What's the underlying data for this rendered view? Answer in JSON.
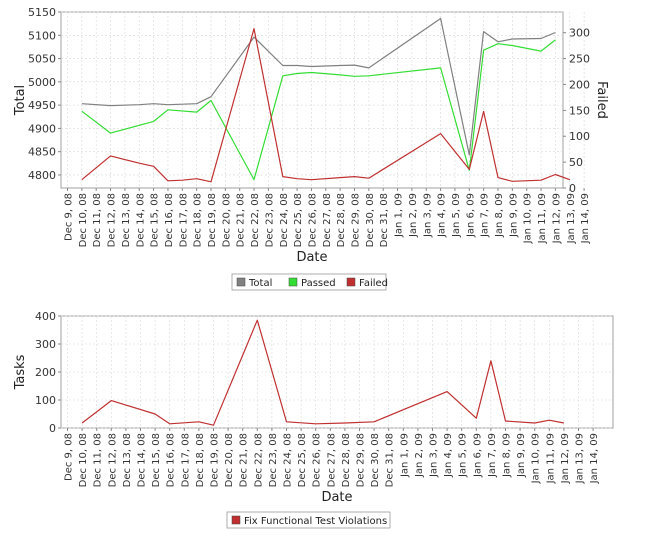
{
  "chart_data": [
    {
      "type": "line",
      "xlabel": "Date",
      "ylabel": "Total",
      "y2label": "Failed",
      "categories": [
        "Dec 9, 08",
        "Dec 10, 08",
        "Dec 11, 08",
        "Dec 12, 08",
        "Dec 13, 08",
        "Dec 14, 08",
        "Dec 15, 08",
        "Dec 16, 08",
        "Dec 17, 08",
        "Dec 18, 08",
        "Dec 19, 08",
        "Dec 20, 08",
        "Dec 21, 08",
        "Dec 22, 08",
        "Dec 23, 08",
        "Dec 24, 08",
        "Dec 25, 08",
        "Dec 26, 08",
        "Dec 27, 08",
        "Dec 28, 08",
        "Dec 29, 08",
        "Dec 30, 08",
        "Dec 31, 08",
        "Jan 1, 09",
        "Jan 2, 09",
        "Jan 3, 09",
        "Jan 4, 09",
        "Jan 5, 09",
        "Jan 6, 09",
        "Jan 7, 09",
        "Jan 8, 09",
        "Jan 9, 09",
        "Jan 10, 09",
        "Jan 11, 09",
        "Jan 12, 09",
        "Jan 13, 09",
        "Jan 14, 09"
      ],
      "ylim": [
        4772,
        5150
      ],
      "yticks": [
        4800,
        4850,
        4900,
        4950,
        5000,
        5050,
        5100,
        5150
      ],
      "y2lim": [
        0,
        340
      ],
      "y2ticks": [
        0,
        50,
        100,
        150,
        200,
        250,
        300
      ],
      "grid": true,
      "legend": "bottom",
      "series": [
        {
          "name": "Total",
          "color": "#808080",
          "axis": "left",
          "points": [
            [
              1,
              4953
            ],
            [
              3,
              4949
            ],
            [
              5,
              4951
            ],
            [
              6,
              4953
            ],
            [
              7,
              4951
            ],
            [
              8,
              4952
            ],
            [
              9,
              4953
            ],
            [
              10,
              4968
            ],
            [
              13,
              5096
            ],
            [
              15,
              5035
            ],
            [
              16,
              5035
            ],
            [
              17,
              5033
            ],
            [
              19,
              5035
            ],
            [
              20,
              5036
            ],
            [
              21,
              5030
            ],
            [
              26,
              5136
            ],
            [
              28,
              4843
            ],
            [
              29,
              5108
            ],
            [
              30,
              5086
            ],
            [
              31,
              5092
            ],
            [
              33,
              5093
            ],
            [
              34,
              5106
            ]
          ]
        },
        {
          "name": "Passed",
          "color": "#33dd33",
          "axis": "left",
          "points": [
            [
              1,
              4937
            ],
            [
              3,
              4890
            ],
            [
              6,
              4915
            ],
            [
              7,
              4940
            ],
            [
              9,
              4935
            ],
            [
              10,
              4960
            ],
            [
              13,
              4790
            ],
            [
              15,
              5013
            ],
            [
              16,
              5018
            ],
            [
              17,
              5020
            ],
            [
              19,
              5015
            ],
            [
              20,
              5012
            ],
            [
              21,
              5013
            ],
            [
              26,
              5030
            ],
            [
              28,
              4810
            ],
            [
              29,
              5068
            ],
            [
              30,
              5082
            ],
            [
              31,
              5078
            ],
            [
              33,
              5066
            ],
            [
              34,
              5090
            ]
          ]
        },
        {
          "name": "Failed",
          "color": "#c03030",
          "axis": "right",
          "points": [
            [
              1,
              16
            ],
            [
              3,
              62
            ],
            [
              5,
              48
            ],
            [
              6,
              42
            ],
            [
              7,
              14
            ],
            [
              8,
              15
            ],
            [
              9,
              18
            ],
            [
              10,
              12
            ],
            [
              13,
              308
            ],
            [
              15,
              22
            ],
            [
              16,
              18
            ],
            [
              17,
              16
            ],
            [
              19,
              20
            ],
            [
              20,
              22
            ],
            [
              21,
              19
            ],
            [
              26,
              105
            ],
            [
              28,
              36
            ],
            [
              29,
              148
            ],
            [
              30,
              20
            ],
            [
              31,
              13
            ],
            [
              33,
              15
            ],
            [
              34,
              26
            ],
            [
              35,
              16
            ]
          ]
        }
      ]
    },
    {
      "type": "line",
      "xlabel": "Date",
      "ylabel": "Tasks",
      "categories": [
        "Dec 9, 08",
        "Dec 10, 08",
        "Dec 11, 08",
        "Dec 12, 08",
        "Dec 13, 08",
        "Dec 14, 08",
        "Dec 15, 08",
        "Dec 16, 08",
        "Dec 17, 08",
        "Dec 18, 08",
        "Dec 19, 08",
        "Dec 20, 08",
        "Dec 21, 08",
        "Dec 22, 08",
        "Dec 23, 08",
        "Dec 24, 08",
        "Dec 25, 08",
        "Dec 26, 08",
        "Dec 27, 08",
        "Dec 28, 08",
        "Dec 29, 08",
        "Dec 30, 08",
        "Dec 31, 08",
        "Jan 1, 09",
        "Jan 2, 09",
        "Jan 3, 09",
        "Jan 4, 09",
        "Jan 5, 09",
        "Jan 6, 09",
        "Jan 7, 09",
        "Jan 8, 09",
        "Jan 9, 09",
        "Jan 10, 09",
        "Jan 11, 09",
        "Jan 12, 09",
        "Jan 13, 09",
        "Jan 14, 09"
      ],
      "ylim": [
        0,
        400
      ],
      "yticks": [
        0,
        100,
        200,
        300,
        400
      ],
      "grid": true,
      "legend": "bottom",
      "series": [
        {
          "name": "Fix Functional Test Violations",
          "color": "#c03030",
          "points": [
            [
              1,
              18
            ],
            [
              3,
              98
            ],
            [
              6,
              50
            ],
            [
              7,
              15
            ],
            [
              9,
              22
            ],
            [
              10,
              10
            ],
            [
              13,
              385
            ],
            [
              15,
              22
            ],
            [
              17,
              15
            ],
            [
              19,
              18
            ],
            [
              21,
              22
            ],
            [
              26,
              130
            ],
            [
              28,
              35
            ],
            [
              29,
              240
            ],
            [
              30,
              25
            ],
            [
              32,
              18
            ],
            [
              33,
              28
            ],
            [
              34,
              18
            ]
          ]
        }
      ]
    }
  ]
}
